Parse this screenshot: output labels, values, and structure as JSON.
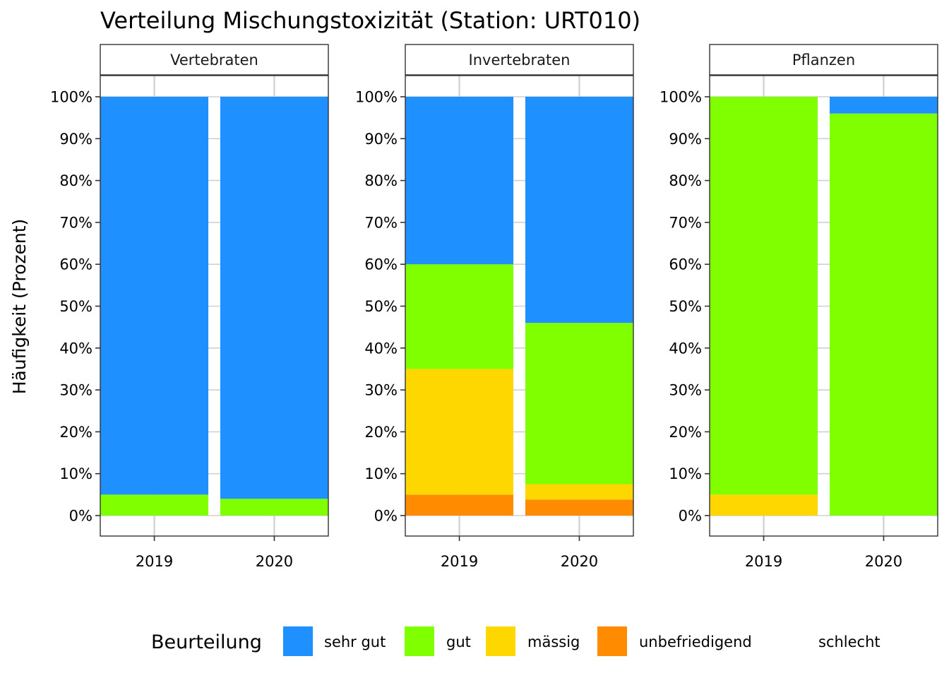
{
  "chart_data": {
    "type": "bar",
    "stacked": true,
    "title": "Verteilung Mischungstoxizität (Station: URT010)",
    "ylabel": "Häufigkeit (Prozent)",
    "xlabel": "",
    "ylim": [
      0,
      100
    ],
    "y_ticks": [
      "0%",
      "10%",
      "20%",
      "30%",
      "40%",
      "50%",
      "60%",
      "70%",
      "80%",
      "90%",
      "100%"
    ],
    "grid": true,
    "legend_position": "bottom",
    "legend": {
      "title": "Beurteilung",
      "items": [
        {
          "name": "sehr gut",
          "color": "#1E90FF"
        },
        {
          "name": "gut",
          "color": "#7FFF00"
        },
        {
          "name": "mässig",
          "color": "#FFD700"
        },
        {
          "name": "unbefriedigend",
          "color": "#FF8C00"
        },
        {
          "name": "schlecht",
          "color": "#FF0000"
        }
      ]
    },
    "categories": [
      "2019",
      "2020"
    ],
    "panels": [
      {
        "strip": "Vertebraten",
        "series": [
          {
            "name": "sehr gut",
            "values": [
              95,
              96
            ]
          },
          {
            "name": "gut",
            "values": [
              5,
              4
            ]
          },
          {
            "name": "mässig",
            "values": [
              0,
              0
            ]
          },
          {
            "name": "unbefriedigend",
            "values": [
              0,
              0
            ]
          },
          {
            "name": "schlecht",
            "values": [
              0,
              0
            ]
          }
        ]
      },
      {
        "strip": "Invertebraten",
        "series": [
          {
            "name": "sehr gut",
            "values": [
              40,
              54
            ]
          },
          {
            "name": "gut",
            "values": [
              25,
              38.5
            ]
          },
          {
            "name": "mässig",
            "values": [
              30,
              3.7
            ]
          },
          {
            "name": "unbefriedigend",
            "values": [
              5,
              3.8
            ]
          },
          {
            "name": "schlecht",
            "values": [
              0,
              0
            ]
          }
        ]
      },
      {
        "strip": "Pflanzen",
        "series": [
          {
            "name": "sehr gut",
            "values": [
              0,
              4
            ]
          },
          {
            "name": "gut",
            "values": [
              95,
              96
            ]
          },
          {
            "name": "mässig",
            "values": [
              5,
              0
            ]
          },
          {
            "name": "unbefriedigend",
            "values": [
              0,
              0
            ]
          },
          {
            "name": "schlecht",
            "values": [
              0,
              0
            ]
          }
        ]
      }
    ]
  }
}
